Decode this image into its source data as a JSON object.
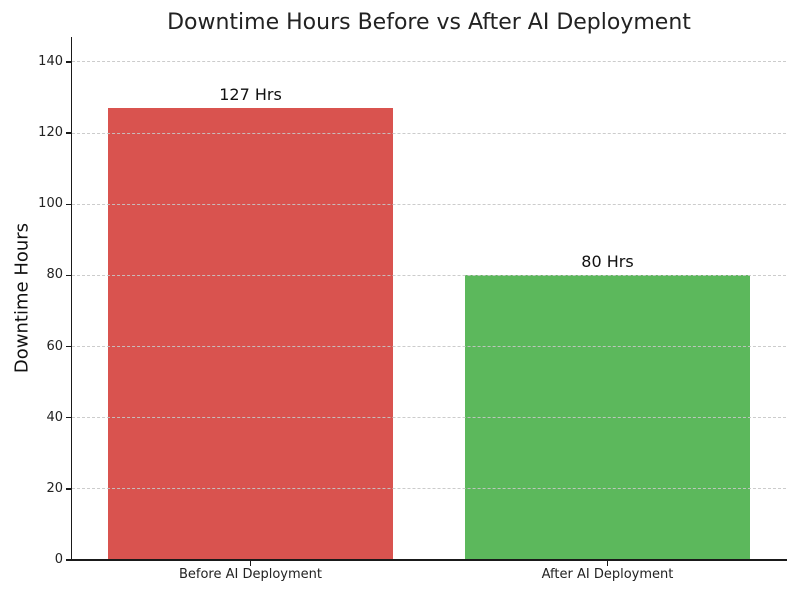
{
  "chart_data": {
    "type": "bar",
    "title": "Downtime Hours Before vs After AI Deployment",
    "xlabel": "",
    "ylabel": "Downtime Hours",
    "categories": [
      "Before AI Deployment",
      "After AI Deployment"
    ],
    "values": [
      127,
      80
    ],
    "bar_labels": [
      "127 Hrs",
      "80 Hrs"
    ],
    "bar_colors": [
      "#d9534f",
      "#5cb85c"
    ],
    "ylim": [
      0,
      147
    ],
    "yticks": [
      0,
      20,
      40,
      60,
      80,
      100,
      120,
      140
    ],
    "grid": {
      "axis": "y",
      "style": "dashed",
      "color": "#c6c6c6",
      "drawn_over_bars": true
    },
    "legend": "none",
    "background_color": "#ffffff"
  }
}
